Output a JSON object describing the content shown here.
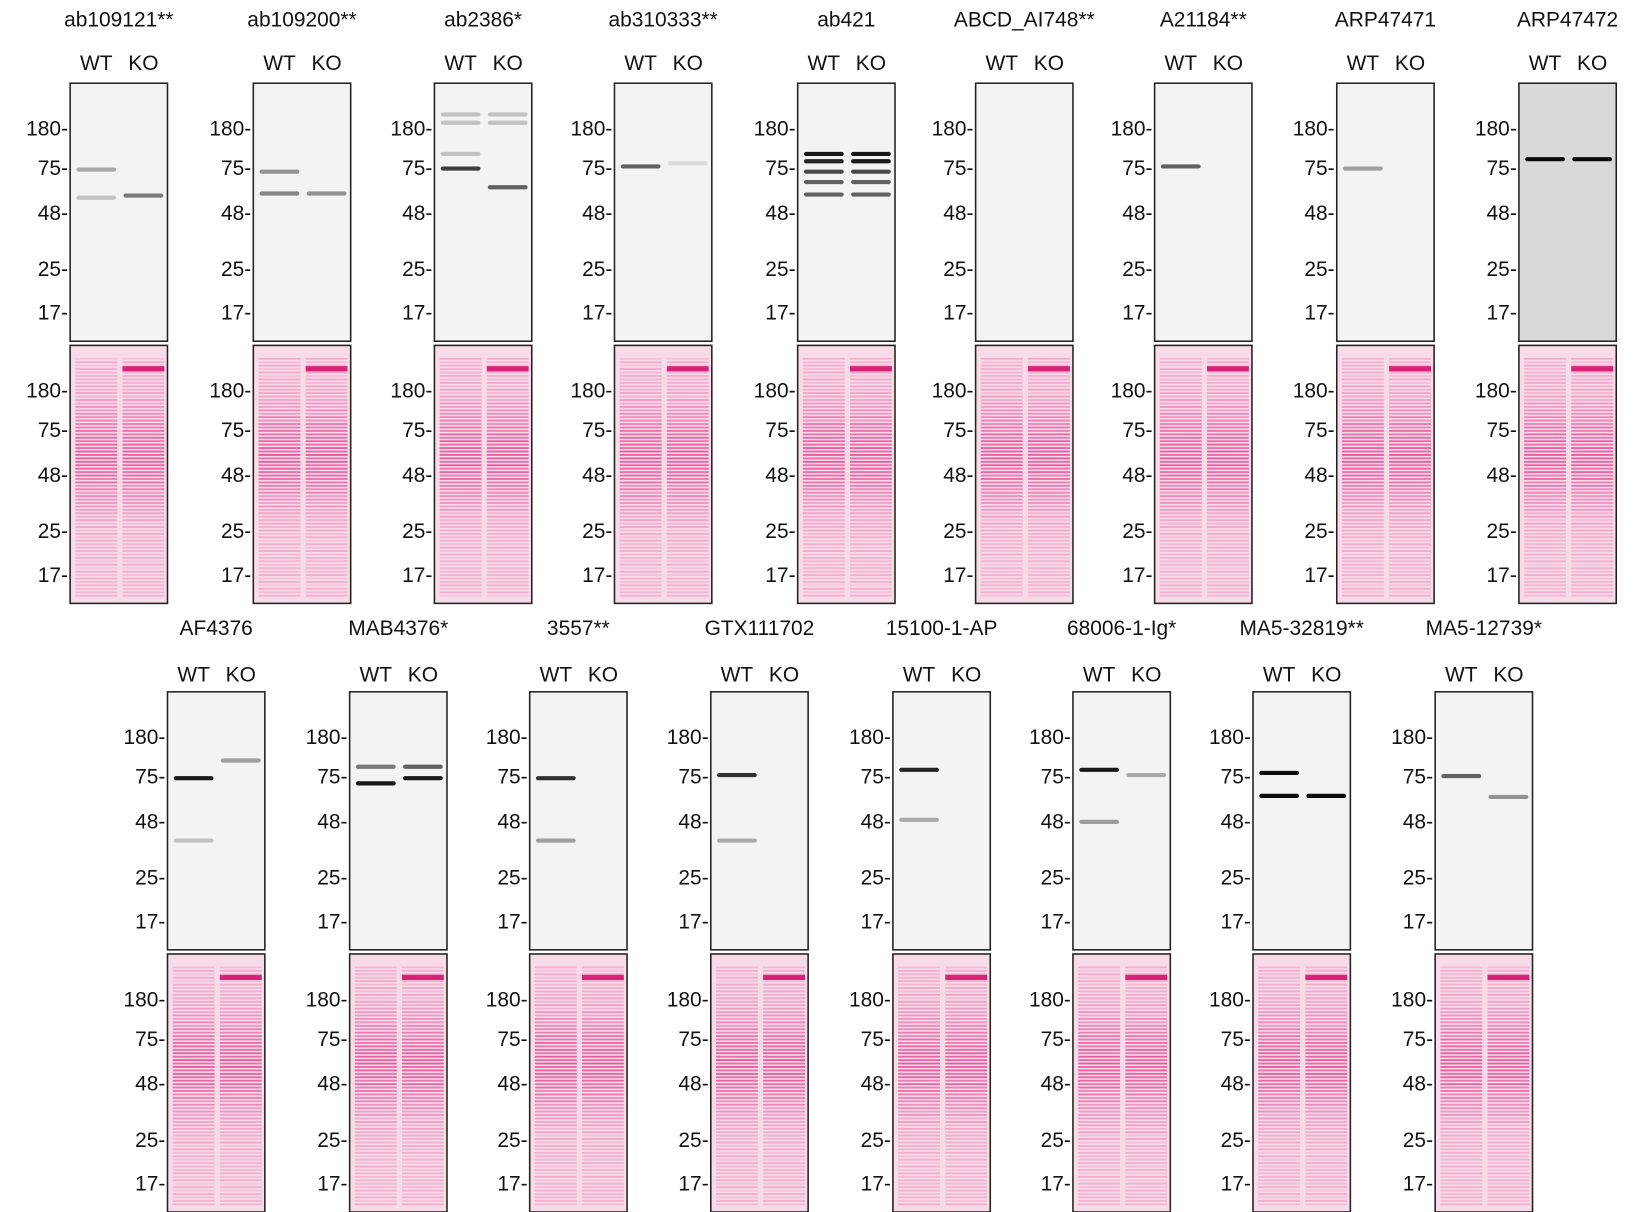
{
  "rows": [
    {
      "panels": [
        {
          "antibody": "ab109121**",
          "lanes": [
            "WT",
            "KO"
          ],
          "blot_markers": [
            "180-",
            "75-",
            "48-",
            "25-",
            "17-"
          ],
          "stain_markers": [
            "180-",
            "75-",
            "48-",
            "25-",
            "17-"
          ]
        },
        {
          "antibody": "ab109200**",
          "lanes": [
            "WT",
            "KO"
          ],
          "blot_markers": [
            "180-",
            "75-",
            "48-",
            "25-",
            "17-"
          ],
          "stain_markers": [
            "180-",
            "75-",
            "48-",
            "25-",
            "17-"
          ]
        },
        {
          "antibody": "ab2386*",
          "lanes": [
            "WT",
            "KO"
          ],
          "blot_markers": [
            "180-",
            "75-",
            "48-",
            "25-",
            "17-"
          ],
          "stain_markers": [
            "180-",
            "75-",
            "48-",
            "25-",
            "17-"
          ]
        },
        {
          "antibody": "ab310333**",
          "lanes": [
            "WT",
            "KO"
          ],
          "blot_markers": [
            "180-",
            "75-",
            "48-",
            "25-",
            "17-"
          ],
          "stain_markers": [
            "180-",
            "75-",
            "48-",
            "25-",
            "17-"
          ]
        },
        {
          "antibody": "ab421",
          "lanes": [
            "WT",
            "KO"
          ],
          "blot_markers": [
            "180-",
            "75-",
            "48-",
            "25-",
            "17-"
          ],
          "stain_markers": [
            "180-",
            "75-",
            "48-",
            "25-",
            "17-"
          ]
        },
        {
          "antibody": "ABCD_AI748**",
          "lanes": [
            "WT",
            "KO"
          ],
          "blot_markers": [
            "180-",
            "75-",
            "48-",
            "25-",
            "17-"
          ],
          "stain_markers": [
            "180-",
            "75-",
            "48-",
            "25-",
            "17-"
          ]
        },
        {
          "antibody": "A21184**",
          "lanes": [
            "WT",
            "KO"
          ],
          "blot_markers": [
            "180-",
            "75-",
            "48-",
            "25-",
            "17-"
          ],
          "stain_markers": [
            "180-",
            "75-",
            "48-",
            "25-",
            "17-"
          ]
        },
        {
          "antibody": "ARP47471",
          "lanes": [
            "WT",
            "KO"
          ],
          "blot_markers": [
            "180-",
            "75-",
            "48-",
            "25-",
            "17-"
          ],
          "stain_markers": [
            "180-",
            "75-",
            "48-",
            "25-",
            "17-"
          ]
        },
        {
          "antibody": "ARP47472",
          "lanes": [
            "WT",
            "KO"
          ],
          "blot_markers": [
            "180-",
            "75-",
            "48-",
            "25-",
            "17-"
          ],
          "stain_markers": [
            "180-",
            "75-",
            "48-",
            "25-",
            "17-"
          ]
        }
      ]
    },
    {
      "panels": [
        {
          "antibody": "AF4376",
          "lanes": [
            "WT",
            "KO"
          ],
          "blot_markers": [
            "180-",
            "75-",
            "48-",
            "25-",
            "17-"
          ],
          "stain_markers": [
            "180-",
            "75-",
            "48-",
            "25-",
            "17-"
          ]
        },
        {
          "antibody": "MAB4376*",
          "lanes": [
            "WT",
            "KO"
          ],
          "blot_markers": [
            "180-",
            "75-",
            "48-",
            "25-",
            "17-"
          ],
          "stain_markers": [
            "180-",
            "75-",
            "48-",
            "25-",
            "17-"
          ]
        },
        {
          "antibody": "3557**",
          "lanes": [
            "WT",
            "KO"
          ],
          "blot_markers": [
            "180-",
            "75-",
            "48-",
            "25-",
            "17-"
          ],
          "stain_markers": [
            "180-",
            "75-",
            "48-",
            "25-",
            "17-"
          ]
        },
        {
          "antibody": "GTX111702",
          "lanes": [
            "WT",
            "KO"
          ],
          "blot_markers": [
            "180-",
            "75-",
            "48-",
            "25-",
            "17-"
          ],
          "stain_markers": [
            "180-",
            "75-",
            "48-",
            "25-",
            "17-"
          ]
        },
        {
          "antibody": "15100-1-AP",
          "lanes": [
            "WT",
            "KO"
          ],
          "blot_markers": [
            "180-",
            "75-",
            "48-",
            "25-",
            "17-"
          ],
          "stain_markers": [
            "180-",
            "75-",
            "48-",
            "25-",
            "17-"
          ]
        },
        {
          "antibody": "68006-1-Ig*",
          "lanes": [
            "WT",
            "KO"
          ],
          "blot_markers": [
            "180-",
            "75-",
            "48-",
            "25-",
            "17-"
          ],
          "stain_markers": [
            "180-",
            "75-",
            "48-",
            "25-",
            "17-"
          ]
        },
        {
          "antibody": "MA5-32819**",
          "lanes": [
            "WT",
            "KO"
          ],
          "blot_markers": [
            "180-",
            "75-",
            "48-",
            "25-",
            "17-"
          ],
          "stain_markers": [
            "180-",
            "75-",
            "48-",
            "25-",
            "17-"
          ]
        },
        {
          "antibody": "MA5-12739*",
          "lanes": [
            "WT",
            "KO"
          ],
          "blot_markers": [
            "180-",
            "75-",
            "48-",
            "25-",
            "17-"
          ],
          "stain_markers": [
            "180-",
            "75-",
            "48-",
            "25-",
            "17-"
          ]
        }
      ]
    }
  ]
}
